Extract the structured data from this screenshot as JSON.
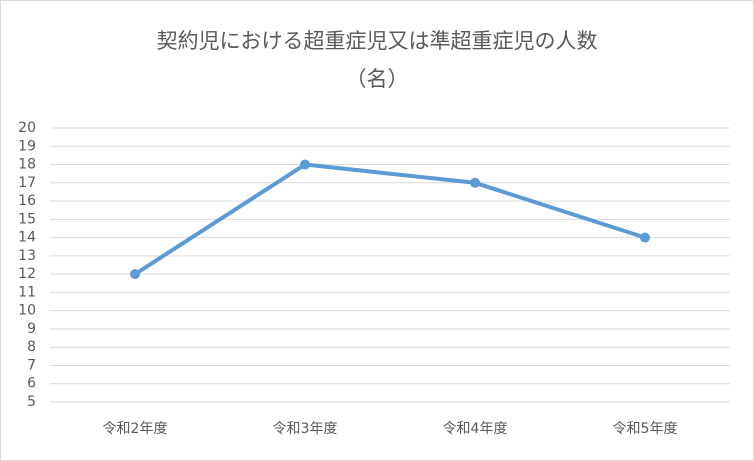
{
  "chart_data": {
    "type": "line",
    "title": "契約児における超重症児又は準超重症児の人数",
    "subtitle": "（名）",
    "categories": [
      "令和2年度",
      "令和3年度",
      "令和4年度",
      "令和5年度"
    ],
    "values": [
      12,
      18,
      17,
      14
    ],
    "color": "#5b9bd5",
    "ylim": [
      5,
      20
    ],
    "yticks": [
      5,
      6,
      7,
      8,
      9,
      10,
      11,
      12,
      13,
      14,
      15,
      16,
      17,
      18,
      19,
      20
    ],
    "grid": true
  }
}
